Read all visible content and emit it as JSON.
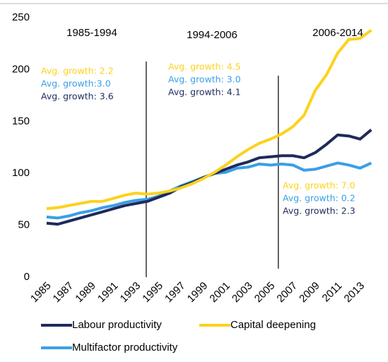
{
  "chart_data": {
    "type": "line",
    "x": [
      1985,
      1986,
      1987,
      1988,
      1989,
      1990,
      1991,
      1992,
      1993,
      1994,
      1995,
      1996,
      1997,
      1998,
      1999,
      2000,
      2001,
      2002,
      2003,
      2004,
      2005,
      2006,
      2007,
      2008,
      2009,
      2010,
      2011,
      2012,
      2013,
      2014
    ],
    "series": [
      {
        "name": "Labour productivity",
        "color": "#1f2a5c",
        "values": [
          52,
          51,
          54,
          57,
          60,
          63,
          66,
          69,
          71,
          73,
          77,
          81,
          87,
          91,
          96,
          100,
          104,
          108,
          111,
          115,
          116,
          117,
          117,
          115,
          120,
          128,
          137,
          136,
          133,
          142
        ]
      },
      {
        "name": "Capital deepening",
        "color": "#fcd21c",
        "values": [
          66,
          67,
          69,
          71,
          73,
          73,
          76,
          79,
          81,
          80,
          81,
          83,
          86,
          90,
          95,
          101,
          108,
          116,
          123,
          129,
          133,
          138,
          145,
          156,
          180,
          195,
          216,
          229,
          230,
          238
        ]
      },
      {
        "name": "Multifactor productivity",
        "color": "#3a9fe6",
        "values": [
          58,
          57,
          59,
          62,
          64,
          67,
          69,
          72,
          74,
          75,
          78,
          83,
          88,
          92,
          96,
          100,
          101,
          105,
          106,
          109,
          108,
          109,
          108,
          103,
          104,
          107,
          110,
          108,
          105,
          110
        ]
      }
    ],
    "xlim": [
      1984.5,
      2014.8
    ],
    "xticks": [
      1985,
      1987,
      1989,
      1991,
      1993,
      1995,
      1997,
      1999,
      2001,
      2003,
      2005,
      2007,
      2009,
      2011,
      2013
    ],
    "ylim": [
      0,
      250
    ],
    "yticks": [
      0,
      50,
      100,
      150,
      200,
      250
    ],
    "grid": false,
    "dividers": [
      1993.9,
      2005.7
    ],
    "periods": [
      {
        "label": "1985-1994",
        "notes": [
          "Avg. growth: 2.2",
          "Avg. growth:3.0",
          "Avg. growth: 3.6"
        ]
      },
      {
        "label": "1994-2006",
        "notes": [
          "Avg. growth: 4.5",
          "Avg. growth: 3.0",
          "Avg. growth: 4.1"
        ]
      },
      {
        "label": "2006-2014",
        "notes": [
          "Avg. growth: 7.0",
          "Avg. growth: 0.2",
          "Avg. growth: 2.3"
        ]
      }
    ]
  }
}
